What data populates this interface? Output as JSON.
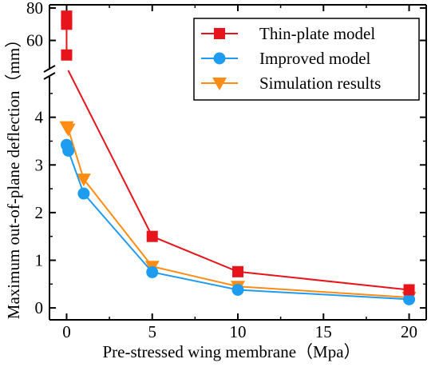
{
  "chart_data": {
    "type": "line",
    "xlabel": "Pre-stressed wing membrane（Mpa）",
    "ylabel": "Maximum out-of-plane deflection（mm）",
    "xlim": [
      -1,
      21
    ],
    "x_ticks": [
      "0",
      "5",
      "10",
      "15",
      "20"
    ],
    "y_ticks_lower": [
      "0",
      "1",
      "2",
      "3",
      "4"
    ],
    "y_ticks_upper": [
      "60",
      "80"
    ],
    "ylim_lower": [
      -0.25,
      4.85
    ],
    "ylim_upper": [
      42,
      82
    ],
    "axis_break": true,
    "grid": false,
    "legend_position": "top-right",
    "series": [
      {
        "name": "Thin-plate model",
        "color": "#e8141c",
        "marker": "square",
        "x": [
          0,
          0,
          0,
          0,
          5,
          10,
          20
        ],
        "y": [
          51,
          70,
          72,
          75,
          1.5,
          0.76,
          0.38
        ]
      },
      {
        "name": "Improved model",
        "color": "#1e9cf0",
        "marker": "circle",
        "x": [
          0,
          0.1,
          1,
          5,
          10,
          20
        ],
        "y": [
          3.42,
          3.3,
          2.4,
          0.75,
          0.38,
          0.18
        ]
      },
      {
        "name": "Simulation results",
        "color": "#ff8c14",
        "marker": "triangle-down",
        "x": [
          0,
          0.1,
          1,
          5,
          10,
          20
        ],
        "y": [
          3.8,
          3.75,
          2.7,
          0.87,
          0.45,
          0.22
        ]
      }
    ]
  }
}
